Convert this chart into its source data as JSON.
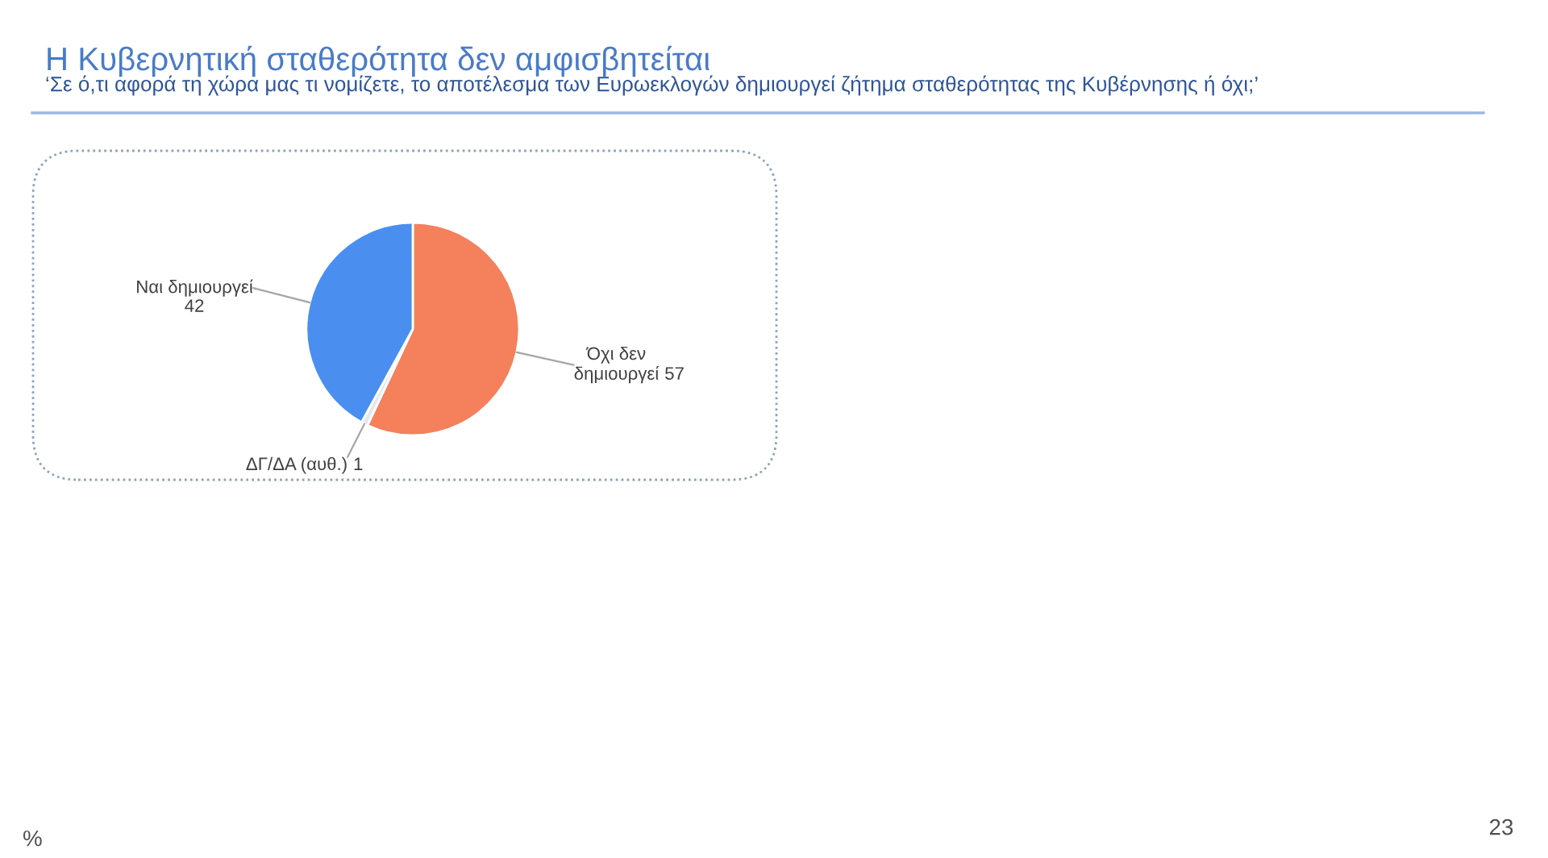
{
  "chart_data": {
    "type": "pie",
    "title": "Η Κυβερνητική σταθερότητα δεν αμφισβητείται",
    "subtitle": "‘Σε ό,τι αφορά τη χώρα μας τι νομίζετε, το αποτέλεσμα των Ευρωεκλογών δημιουργεί ζήτημα σταθερότητας της Κυβέρνησης ή όχι;’",
    "categories": [
      "Όχι δεν δημιουργεί",
      "ΔΓ/ΔΑ (αυθ.)",
      "Ναι δημιουργεί"
    ],
    "values": [
      57,
      1,
      42
    ],
    "colors": [
      "#f4805c",
      "#e3e8ef",
      "#4a8ff0"
    ],
    "data_labels": true,
    "annotations": [
      "%",
      "23"
    ]
  }
}
